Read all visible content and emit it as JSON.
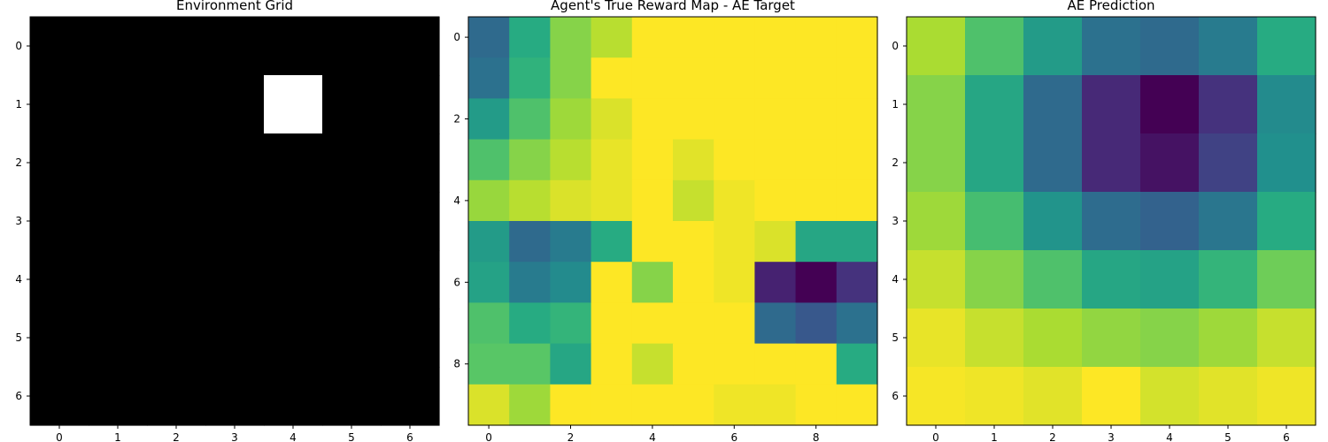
{
  "chart_data": [
    {
      "type": "heatmap",
      "title": "Environment Grid",
      "rows": 7,
      "cols": 7,
      "colormap": "gray",
      "vmin": 0,
      "vmax": 1,
      "xticks": [
        0,
        1,
        2,
        3,
        4,
        5,
        6
      ],
      "yticks": [
        0,
        1,
        2,
        3,
        4,
        5,
        6
      ],
      "values": [
        [
          0,
          0,
          0,
          0,
          0,
          0,
          0
        ],
        [
          0,
          0,
          0,
          0,
          1,
          0,
          0
        ],
        [
          0,
          0,
          0,
          0,
          0,
          0,
          0
        ],
        [
          0,
          0,
          0,
          0,
          0,
          0,
          0
        ],
        [
          0,
          0,
          0,
          0,
          0,
          0,
          0
        ],
        [
          0,
          0,
          0,
          0,
          0,
          0,
          0
        ],
        [
          0,
          0,
          0,
          0,
          0,
          0,
          0
        ]
      ]
    },
    {
      "type": "heatmap",
      "title": "Agent's True Reward Map - AE Target",
      "rows": 10,
      "cols": 10,
      "colormap": "viridis",
      "vmin": 0,
      "vmax": 1,
      "xticks": [
        0,
        2,
        4,
        6,
        8
      ],
      "yticks": [
        0,
        2,
        4,
        6,
        8
      ],
      "values": [
        [
          0.35,
          0.62,
          0.82,
          0.9,
          1.0,
          1.0,
          1.0,
          1.0,
          1.0,
          1.0
        ],
        [
          0.38,
          0.65,
          0.82,
          1.0,
          1.0,
          1.0,
          1.0,
          1.0,
          1.0,
          1.0
        ],
        [
          0.55,
          0.72,
          0.86,
          0.95,
          1.0,
          1.0,
          1.0,
          1.0,
          1.0,
          1.0
        ],
        [
          0.72,
          0.82,
          0.9,
          0.97,
          1.0,
          0.96,
          1.0,
          1.0,
          1.0,
          1.0
        ],
        [
          0.85,
          0.9,
          0.95,
          0.97,
          1.0,
          0.92,
          0.98,
          1.0,
          1.0,
          1.0
        ],
        [
          0.55,
          0.35,
          0.42,
          0.62,
          1.0,
          1.0,
          0.98,
          0.95,
          0.6,
          0.6
        ],
        [
          0.58,
          0.42,
          0.48,
          1.0,
          0.82,
          1.0,
          0.98,
          0.1,
          0.0,
          0.15
        ],
        [
          0.72,
          0.62,
          0.66,
          1.0,
          1.0,
          1.0,
          1.0,
          0.35,
          0.28,
          0.38
        ],
        [
          0.74,
          0.74,
          0.6,
          1.0,
          0.92,
          1.0,
          1.0,
          1.0,
          1.0,
          0.62
        ],
        [
          0.95,
          0.86,
          1.0,
          1.0,
          1.0,
          1.0,
          0.98,
          0.98,
          1.0,
          1.0
        ]
      ]
    },
    {
      "type": "heatmap",
      "title": "AE Prediction",
      "rows": 7,
      "cols": 7,
      "colormap": "viridis",
      "vmin": 0,
      "vmax": 1,
      "xticks": [
        0,
        1,
        2,
        3,
        4,
        5,
        6
      ],
      "yticks": [
        0,
        1,
        2,
        3,
        4,
        5,
        6
      ],
      "values": [
        [
          0.88,
          0.72,
          0.55,
          0.38,
          0.35,
          0.42,
          0.62
        ],
        [
          0.82,
          0.6,
          0.35,
          0.12,
          0.0,
          0.15,
          0.48
        ],
        [
          0.82,
          0.6,
          0.35,
          0.12,
          0.05,
          0.2,
          0.5
        ],
        [
          0.86,
          0.7,
          0.52,
          0.36,
          0.32,
          0.4,
          0.62
        ],
        [
          0.92,
          0.82,
          0.72,
          0.6,
          0.58,
          0.66,
          0.78
        ],
        [
          0.97,
          0.92,
          0.88,
          0.84,
          0.82,
          0.86,
          0.92
        ],
        [
          0.99,
          0.98,
          0.96,
          1.0,
          0.94,
          0.96,
          0.98
        ]
      ]
    }
  ]
}
